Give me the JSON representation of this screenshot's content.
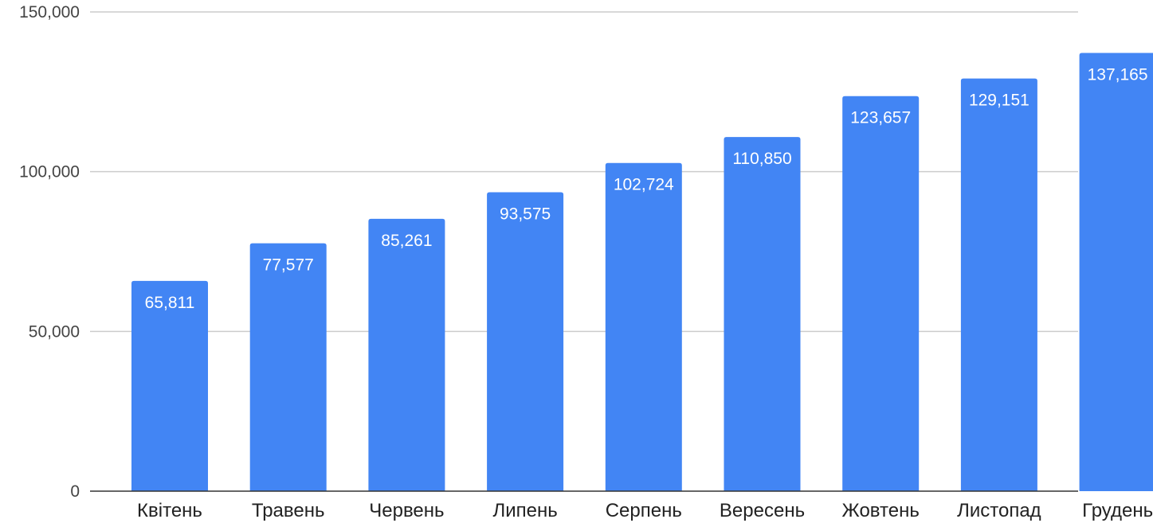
{
  "chart_data": {
    "type": "bar",
    "title": "",
    "xlabel": "",
    "ylabel": "",
    "ylim": [
      0,
      150000
    ],
    "yticks": [
      0,
      50000,
      100000,
      150000
    ],
    "ytick_labels": [
      "0",
      "50,000",
      "100,000",
      "150,000"
    ],
    "grid": true,
    "legend": "none",
    "bar_color": "#4285f4",
    "categories": [
      "Квітень",
      "Травень",
      "Червень",
      "Липень",
      "Серпень",
      "Вересень",
      "Жовтень",
      "Листопад",
      "Грудень"
    ],
    "values": [
      65811,
      77577,
      85261,
      93575,
      102724,
      110850,
      123657,
      129151,
      137165
    ],
    "data_labels": [
      "65,811",
      "77,577",
      "85,261",
      "93,575",
      "102,724",
      "110,850",
      "123,657",
      "129,151",
      "137,165"
    ]
  }
}
